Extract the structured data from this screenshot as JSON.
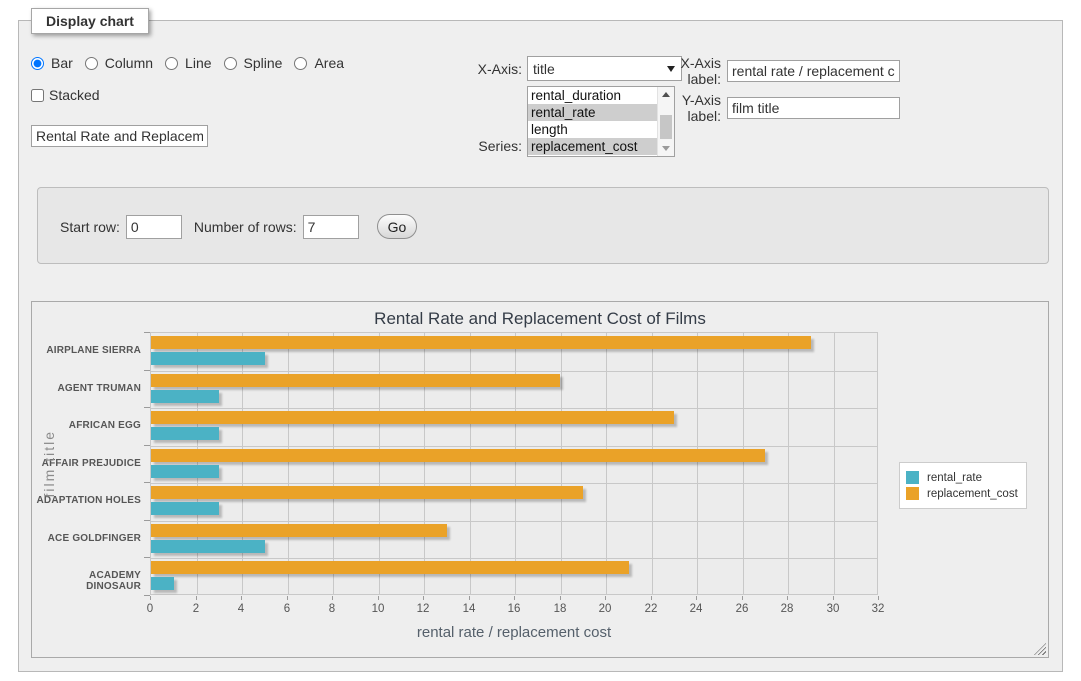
{
  "panel": {
    "legend": "Display chart",
    "chart_types": [
      {
        "label": "Bar",
        "checked": true
      },
      {
        "label": "Column",
        "checked": false
      },
      {
        "label": "Line",
        "checked": false
      },
      {
        "label": "Spline",
        "checked": false
      },
      {
        "label": "Area",
        "checked": false
      }
    ],
    "stacked_label": "Stacked",
    "stacked_checked": false,
    "chart_title_input_value": "Rental Rate and Replacement Cost of Films",
    "x_axis": {
      "label": "X-Axis:",
      "selected_value": "title"
    },
    "series": {
      "label": "Series:",
      "options": [
        {
          "label": "rental_duration",
          "selected": false
        },
        {
          "label": "rental_rate",
          "selected": true
        },
        {
          "label": "length",
          "selected": false
        },
        {
          "label": "replacement_cost",
          "selected": true
        }
      ]
    },
    "x_axis_label_field": {
      "label": "X-Axis label:",
      "value": "rental rate / replacement cost"
    },
    "y_axis_label_field": {
      "label": "Y-Axis label:",
      "value": "film title"
    }
  },
  "row_controls": {
    "start_row_label": "Start row:",
    "start_row_value": "0",
    "num_rows_label": "Number of rows:",
    "num_rows_value": "7",
    "go_label": "Go"
  },
  "chart_data": {
    "type": "bar",
    "orientation": "horizontal",
    "title": "Rental Rate and Replacement Cost of Films",
    "xlabel": "rental rate / replacement cost",
    "ylabel": "film title",
    "categories": [
      "AIRPLANE SIERRA",
      "AGENT TRUMAN",
      "AFRICAN EGG",
      "AFFAIR PREJUDICE",
      "ADAPTATION HOLES",
      "ACE GOLDFINGER",
      "ACADEMY DINOSAUR"
    ],
    "series": [
      {
        "name": "rental_rate",
        "color": "#4bb2c5",
        "values": [
          4.99,
          2.99,
          2.99,
          2.99,
          2.99,
          4.99,
          0.99
        ]
      },
      {
        "name": "replacement_cost",
        "color": "#eaa228",
        "values": [
          28.99,
          17.99,
          22.99,
          26.99,
          18.99,
          12.99,
          20.99
        ]
      }
    ],
    "xlim": [
      0,
      32
    ],
    "xtick_step": 2,
    "grid": true,
    "legend_position": "right",
    "bar_group_order_top_to_bottom": [
      "replacement_cost",
      "rental_rate"
    ]
  },
  "colors": {
    "series_rental_rate": "#4bb2c5",
    "series_replacement_cost": "#eaa228",
    "panel_bg": "#efefef",
    "grid_bg": "#ececec",
    "gridline": "#c8c8c8"
  }
}
